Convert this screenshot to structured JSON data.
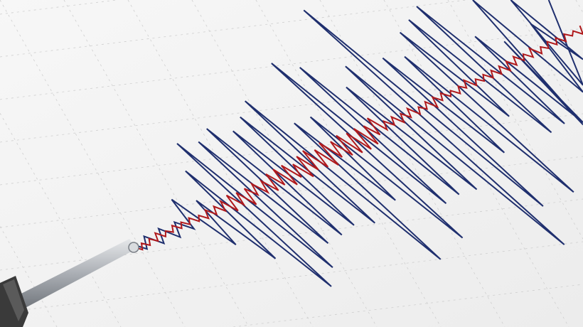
{
  "image": {
    "subject": "seismograph",
    "colors": {
      "paper": "#f4f4f4",
      "grid": "#cfcfcf",
      "trace_blue": "#1f2f6e",
      "trace_red": "#b0191c",
      "pen_rod": "#b8bcc2",
      "pen_holder": "#3a3a3a"
    }
  }
}
